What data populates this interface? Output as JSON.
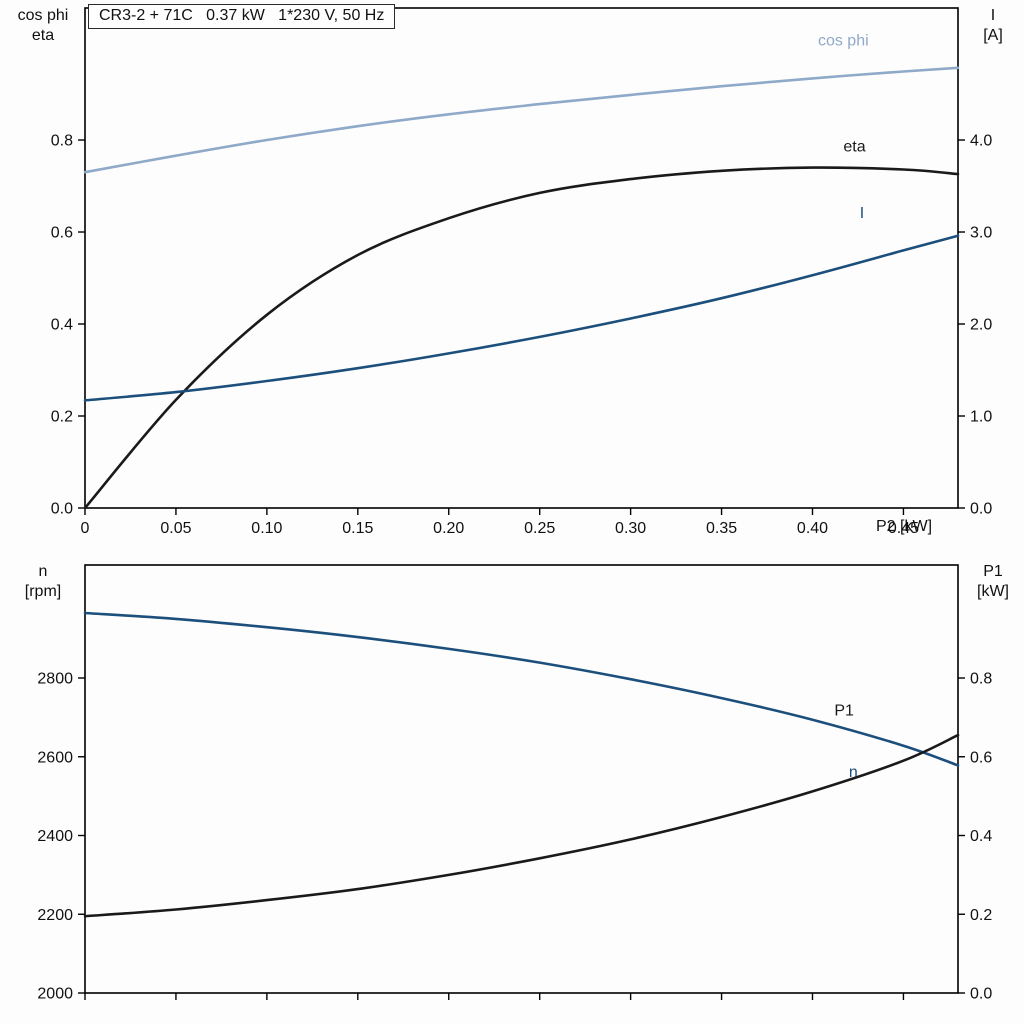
{
  "title": "CR3-2 + 71C   0.37 kW   1*230 V, 50 Hz",
  "colors": {
    "cos_phi": "#8fa9c8",
    "current": "#1c4f7c",
    "speed": "#1c4f7c",
    "black_curve": "#1a1a1a",
    "frame": "#000000",
    "background": "#fdfdfd"
  },
  "corner_labels": {
    "top_left": [
      "cos phi",
      "eta"
    ],
    "top_right": [
      "I",
      "[A]"
    ],
    "bottom_left": [
      "n",
      "[rpm]"
    ],
    "bottom_right": [
      "P1",
      "[kW]"
    ]
  },
  "chart_data": [
    {
      "type": "line",
      "title": "CR3-2 + 71C   0.37 kW   1*230 V, 50 Hz",
      "x_axis": {
        "label": "P2 [kW]",
        "min": 0,
        "max": 0.48,
        "ticks": [
          0,
          0.05,
          0.1,
          0.15,
          0.2,
          0.25,
          0.3,
          0.35,
          0.4,
          0.45
        ],
        "tick_labels": [
          "0",
          "0.05",
          "0.10",
          "0.15",
          "0.20",
          "0.25",
          "0.30",
          "0.35",
          "0.40",
          "0.45"
        ]
      },
      "left_axis": {
        "label": "cos phi / eta",
        "min": 0,
        "max": 1.087,
        "ticks": [
          0.0,
          0.2,
          0.4,
          0.6,
          0.8
        ],
        "tick_labels": [
          "0.0",
          "0.2",
          "0.4",
          "0.6",
          "0.8"
        ]
      },
      "right_axis": {
        "label": "I [A]",
        "min": 0,
        "max": 5.435,
        "ticks": [
          0,
          1,
          2,
          3,
          4
        ],
        "tick_labels": [
          "0.0",
          "1.0",
          "2.0",
          "3.0",
          "4.0"
        ]
      },
      "x": [
        0,
        0.05,
        0.1,
        0.15,
        0.2,
        0.25,
        0.3,
        0.35,
        0.4,
        0.45,
        0.48
      ],
      "series": [
        {
          "name": "cos phi",
          "axis": "left",
          "color": "#8fa9c8",
          "values": [
            0.73,
            0.766,
            0.8,
            0.83,
            0.856,
            0.878,
            0.898,
            0.917,
            0.934,
            0.949,
            0.957
          ],
          "label": {
            "text": "cos phi",
            "x": 0.403,
            "y": 1.005
          }
        },
        {
          "name": "eta",
          "axis": "left",
          "color": "#1a1a1a",
          "values": [
            0.0,
            0.235,
            0.42,
            0.55,
            0.63,
            0.685,
            0.715,
            0.733,
            0.74,
            0.736,
            0.726
          ],
          "label": {
            "text": "eta",
            "x": 0.417,
            "y": 0.775
          }
        },
        {
          "name": "I",
          "axis": "right",
          "color": "#1c4f7c",
          "values": [
            1.17,
            1.26,
            1.38,
            1.52,
            1.68,
            1.86,
            2.06,
            2.28,
            2.53,
            2.8,
            2.96
          ],
          "label": {
            "text": "I",
            "x": 0.426,
            "y": 3.15
          }
        }
      ]
    },
    {
      "type": "line",
      "title": "",
      "x_axis": {
        "label": "",
        "min": 0,
        "max": 0.48,
        "ticks": [
          0,
          0.05,
          0.1,
          0.15,
          0.2,
          0.25,
          0.3,
          0.35,
          0.4,
          0.45
        ],
        "tick_labels": []
      },
      "left_axis": {
        "label": "n [rpm]",
        "min": 2000,
        "max": 3087,
        "ticks": [
          2000,
          2200,
          2400,
          2600,
          2800
        ],
        "tick_labels": [
          "2000",
          "2200",
          "2400",
          "2600",
          "2800"
        ]
      },
      "right_axis": {
        "label": "P1 [kW]",
        "min": 0,
        "max": 1.087,
        "ticks": [
          0.0,
          0.2,
          0.4,
          0.6,
          0.8
        ],
        "tick_labels": [
          "0.0",
          "0.2",
          "0.4",
          "0.6",
          "0.8"
        ]
      },
      "x": [
        0,
        0.05,
        0.1,
        0.15,
        0.2,
        0.25,
        0.3,
        0.35,
        0.4,
        0.45,
        0.48
      ],
      "series": [
        {
          "name": "n",
          "axis": "left",
          "color": "#1c4f7c",
          "values": [
            2965,
            2950,
            2929,
            2904,
            2874,
            2839,
            2797,
            2749,
            2694,
            2628,
            2578
          ],
          "label": {
            "text": "n",
            "x": 0.42,
            "y": 2548
          }
        },
        {
          "name": "P1",
          "axis": "right",
          "color": "#1a1a1a",
          "values": [
            0.195,
            0.212,
            0.236,
            0.264,
            0.3,
            0.342,
            0.39,
            0.447,
            0.512,
            0.59,
            0.655
          ],
          "label": {
            "text": "P1",
            "x": 0.412,
            "y": 0.705
          }
        }
      ]
    }
  ]
}
